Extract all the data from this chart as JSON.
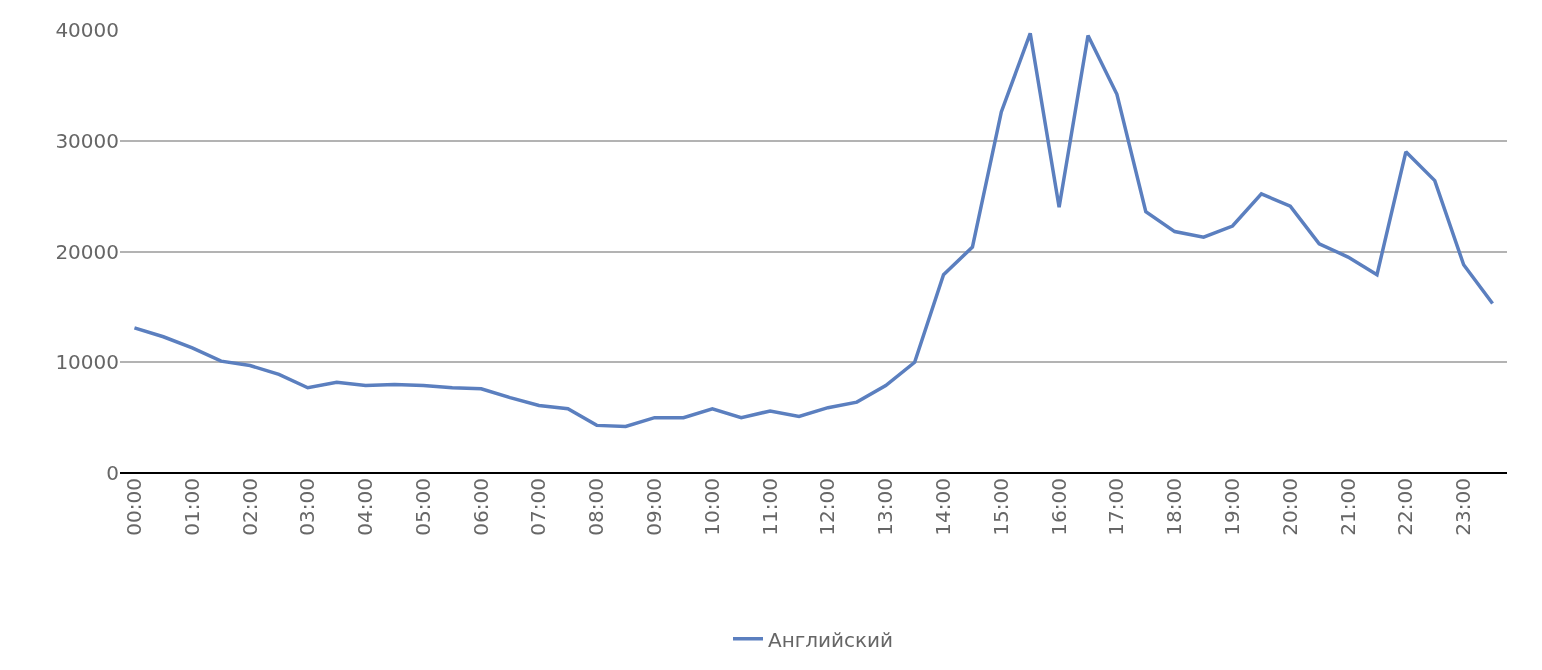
{
  "chart_data": {
    "type": "line",
    "categories": [
      "00:00",
      null,
      "01:00",
      null,
      "02:00",
      null,
      "03:00",
      null,
      "04:00",
      null,
      "05:00",
      null,
      "06:00",
      null,
      "07:00",
      null,
      "08:00",
      null,
      "09:00",
      null,
      "10:00",
      null,
      "11:00",
      null,
      "12:00",
      null,
      "13:00",
      null,
      "14:00",
      null,
      "15:00",
      null,
      "16:00",
      null,
      "17:00",
      null,
      "18:00",
      null,
      "19:00",
      null,
      "20:00",
      null,
      "21:00",
      null,
      "22:00",
      null,
      "23:00",
      null
    ],
    "series": [
      {
        "name": "Английский",
        "color": "#5b7fbf",
        "values": [
          13100,
          12300,
          11300,
          10100,
          9700,
          8900,
          7700,
          8200,
          7900,
          8000,
          7900,
          7700,
          7600,
          6800,
          6100,
          5800,
          4300,
          4200,
          5000,
          5000,
          5800,
          5000,
          5600,
          5100,
          5900,
          6400,
          7900,
          10000,
          17900,
          20400,
          32600,
          39700,
          24000,
          39500,
          34200,
          23600,
          21800,
          21300,
          22300,
          25200,
          24100,
          20700,
          19500,
          17900,
          29000,
          26400,
          18800,
          15300
        ]
      }
    ],
    "ylim": [
      0,
      40000
    ],
    "yticks": [
      0,
      10000,
      20000,
      30000,
      40000
    ],
    "grid": "y",
    "legend": "bottom",
    "marker": "none",
    "line_style": "solid"
  }
}
